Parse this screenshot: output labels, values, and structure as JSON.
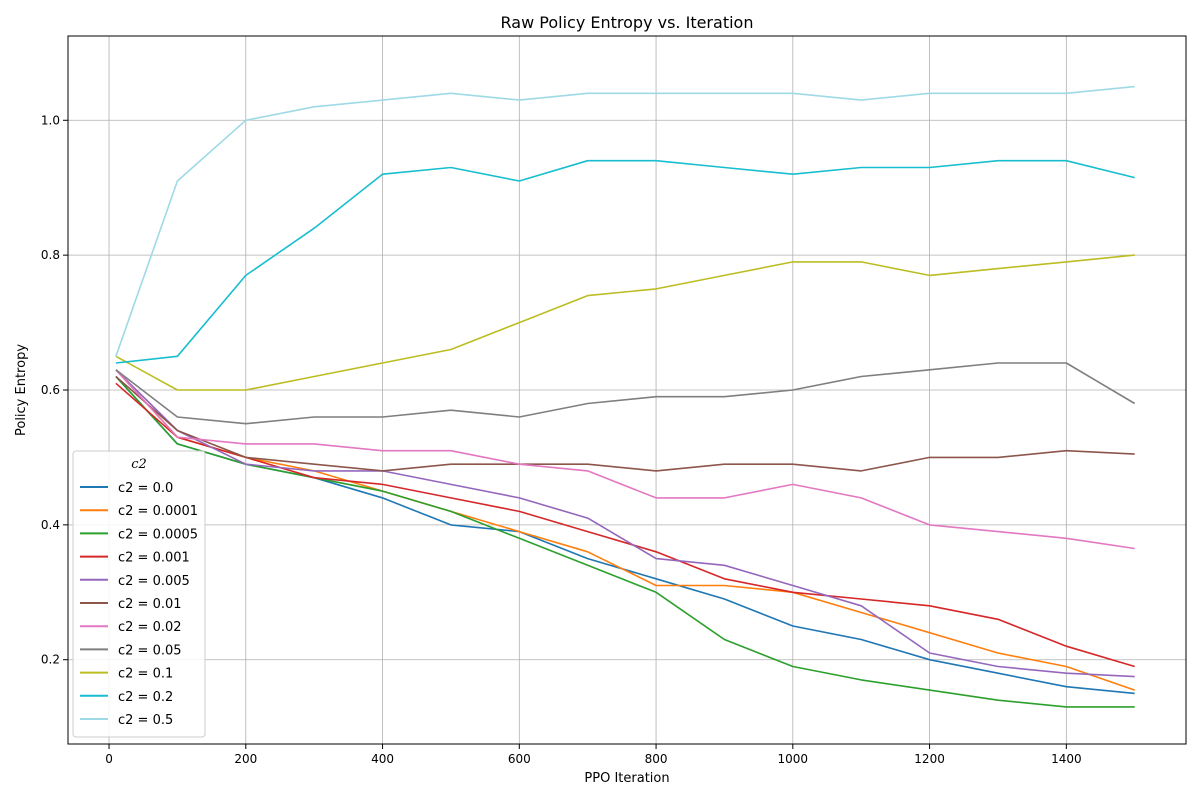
{
  "chart_data": {
    "type": "line",
    "title": "Raw Policy Entropy vs. Iteration",
    "xlabel": "PPO Iteration",
    "ylabel": "Policy Entropy",
    "xlim": [
      -60,
      1575
    ],
    "ylim": [
      0.075,
      1.125
    ],
    "xticks": [
      0,
      200,
      400,
      600,
      800,
      1000,
      1200,
      1400
    ],
    "yticks": [
      0.2,
      0.4,
      0.6,
      0.8,
      1.0
    ],
    "ytick_labels": [
      "0.2",
      "0.4",
      "0.6",
      "0.8",
      "1.0"
    ],
    "grid": true,
    "legend": {
      "title": "c2",
      "position": "bottom-left"
    },
    "x": [
      10,
      100,
      200,
      300,
      400,
      500,
      600,
      700,
      800,
      900,
      1000,
      1100,
      1200,
      1300,
      1400,
      1500
    ],
    "series": [
      {
        "name": "c2 = 0.0",
        "color": "#1f77b4",
        "values": [
          0.62,
          0.52,
          0.49,
          0.47,
          0.44,
          0.4,
          0.39,
          0.35,
          0.32,
          0.29,
          0.25,
          0.23,
          0.2,
          0.18,
          0.16,
          0.15
        ]
      },
      {
        "name": "c2 = 0.0001",
        "color": "#ff7f0e",
        "values": [
          0.63,
          0.53,
          0.5,
          0.48,
          0.45,
          0.42,
          0.39,
          0.36,
          0.31,
          0.31,
          0.3,
          0.27,
          0.24,
          0.21,
          0.19,
          0.155
        ]
      },
      {
        "name": "c2 = 0.0005",
        "color": "#2ca02c",
        "values": [
          0.62,
          0.52,
          0.49,
          0.47,
          0.45,
          0.42,
          0.38,
          0.34,
          0.3,
          0.23,
          0.19,
          0.17,
          0.155,
          0.14,
          0.13,
          0.13
        ]
      },
      {
        "name": "c2 = 0.001",
        "color": "#d62728",
        "values": [
          0.61,
          0.53,
          0.5,
          0.47,
          0.46,
          0.44,
          0.42,
          0.39,
          0.36,
          0.32,
          0.3,
          0.29,
          0.28,
          0.26,
          0.22,
          0.19
        ]
      },
      {
        "name": "c2 = 0.005",
        "color": "#9467bd",
        "values": [
          0.63,
          0.54,
          0.49,
          0.48,
          0.48,
          0.46,
          0.44,
          0.41,
          0.35,
          0.34,
          0.31,
          0.28,
          0.21,
          0.19,
          0.18,
          0.175
        ]
      },
      {
        "name": "c2 = 0.01",
        "color": "#8c564b",
        "values": [
          0.62,
          0.54,
          0.5,
          0.49,
          0.48,
          0.49,
          0.49,
          0.49,
          0.48,
          0.49,
          0.49,
          0.48,
          0.5,
          0.5,
          0.51,
          0.505
        ]
      },
      {
        "name": "c2 = 0.02",
        "color": "#e377c2",
        "values": [
          0.63,
          0.53,
          0.52,
          0.52,
          0.51,
          0.51,
          0.49,
          0.48,
          0.44,
          0.44,
          0.46,
          0.44,
          0.4,
          0.39,
          0.38,
          0.365
        ]
      },
      {
        "name": "c2 = 0.05",
        "color": "#7f7f7f",
        "values": [
          0.63,
          0.56,
          0.55,
          0.56,
          0.56,
          0.57,
          0.56,
          0.58,
          0.59,
          0.59,
          0.6,
          0.62,
          0.63,
          0.64,
          0.64,
          0.58
        ]
      },
      {
        "name": "c2 = 0.1",
        "color": "#bcbd22",
        "values": [
          0.65,
          0.6,
          0.6,
          0.62,
          0.64,
          0.66,
          0.7,
          0.74,
          0.75,
          0.77,
          0.79,
          0.79,
          0.77,
          0.78,
          0.79,
          0.8
        ]
      },
      {
        "name": "c2 = 0.2",
        "color": "#17becf",
        "values": [
          0.64,
          0.65,
          0.77,
          0.84,
          0.92,
          0.93,
          0.91,
          0.94,
          0.94,
          0.93,
          0.92,
          0.93,
          0.93,
          0.94,
          0.94,
          0.915
        ]
      },
      {
        "name": "c2 = 0.5",
        "color": "#9edae5",
        "values": [
          0.65,
          0.91,
          1.0,
          1.02,
          1.03,
          1.04,
          1.03,
          1.04,
          1.04,
          1.04,
          1.04,
          1.03,
          1.04,
          1.04,
          1.04,
          1.05
        ]
      }
    ]
  }
}
